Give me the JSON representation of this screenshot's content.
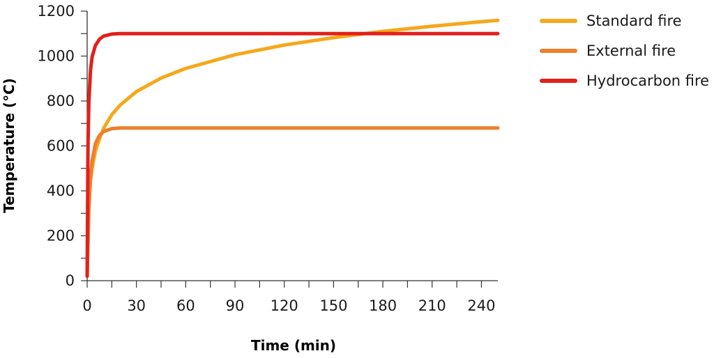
{
  "chart_data": {
    "type": "line",
    "xlabel": "Time (min)",
    "ylabel": "Temperature (°C)",
    "xlim": [
      0,
      250
    ],
    "ylim": [
      0,
      1200
    ],
    "x_ticks": [
      0,
      30,
      60,
      90,
      120,
      150,
      180,
      210,
      240
    ],
    "x_minor_step": 15,
    "y_ticks": [
      0,
      200,
      400,
      600,
      800,
      1000,
      1200
    ],
    "y_minor_step": 100,
    "grid": false,
    "legend_position": "top-right",
    "series": [
      {
        "name": "Standard fire",
        "color": "#f5a81c",
        "x": [
          0,
          1,
          2,
          3,
          5,
          7.5,
          10,
          15,
          20,
          30,
          45,
          60,
          90,
          120,
          150,
          180,
          210,
          240,
          250
        ],
        "y": [
          20,
          349,
          445,
          502,
          576,
          632,
          678,
          739,
          781,
          842,
          902,
          945,
          1006,
          1049,
          1082,
          1110,
          1133,
          1153,
          1159
        ]
      },
      {
        "name": "External fire",
        "color": "#ee7f2d",
        "x": [
          0,
          1,
          2,
          3,
          5,
          7.5,
          10,
          15,
          20,
          30,
          60,
          120,
          180,
          240,
          250
        ],
        "y": [
          20,
          310,
          450,
          532,
          610,
          647,
          664,
          677,
          680,
          680,
          680,
          680,
          680,
          680,
          680
        ]
      },
      {
        "name": "Hydrocarbon fire",
        "color": "#e1211b",
        "x": [
          0,
          0.5,
          1,
          2,
          3,
          5,
          7.5,
          10,
          15,
          20,
          25,
          30,
          60,
          120,
          180,
          240,
          250
        ],
        "y": [
          20,
          600,
          786,
          934,
          996,
          1047,
          1075,
          1089,
          1098,
          1100,
          1100,
          1100,
          1100,
          1100,
          1100,
          1100,
          1100
        ]
      }
    ]
  }
}
